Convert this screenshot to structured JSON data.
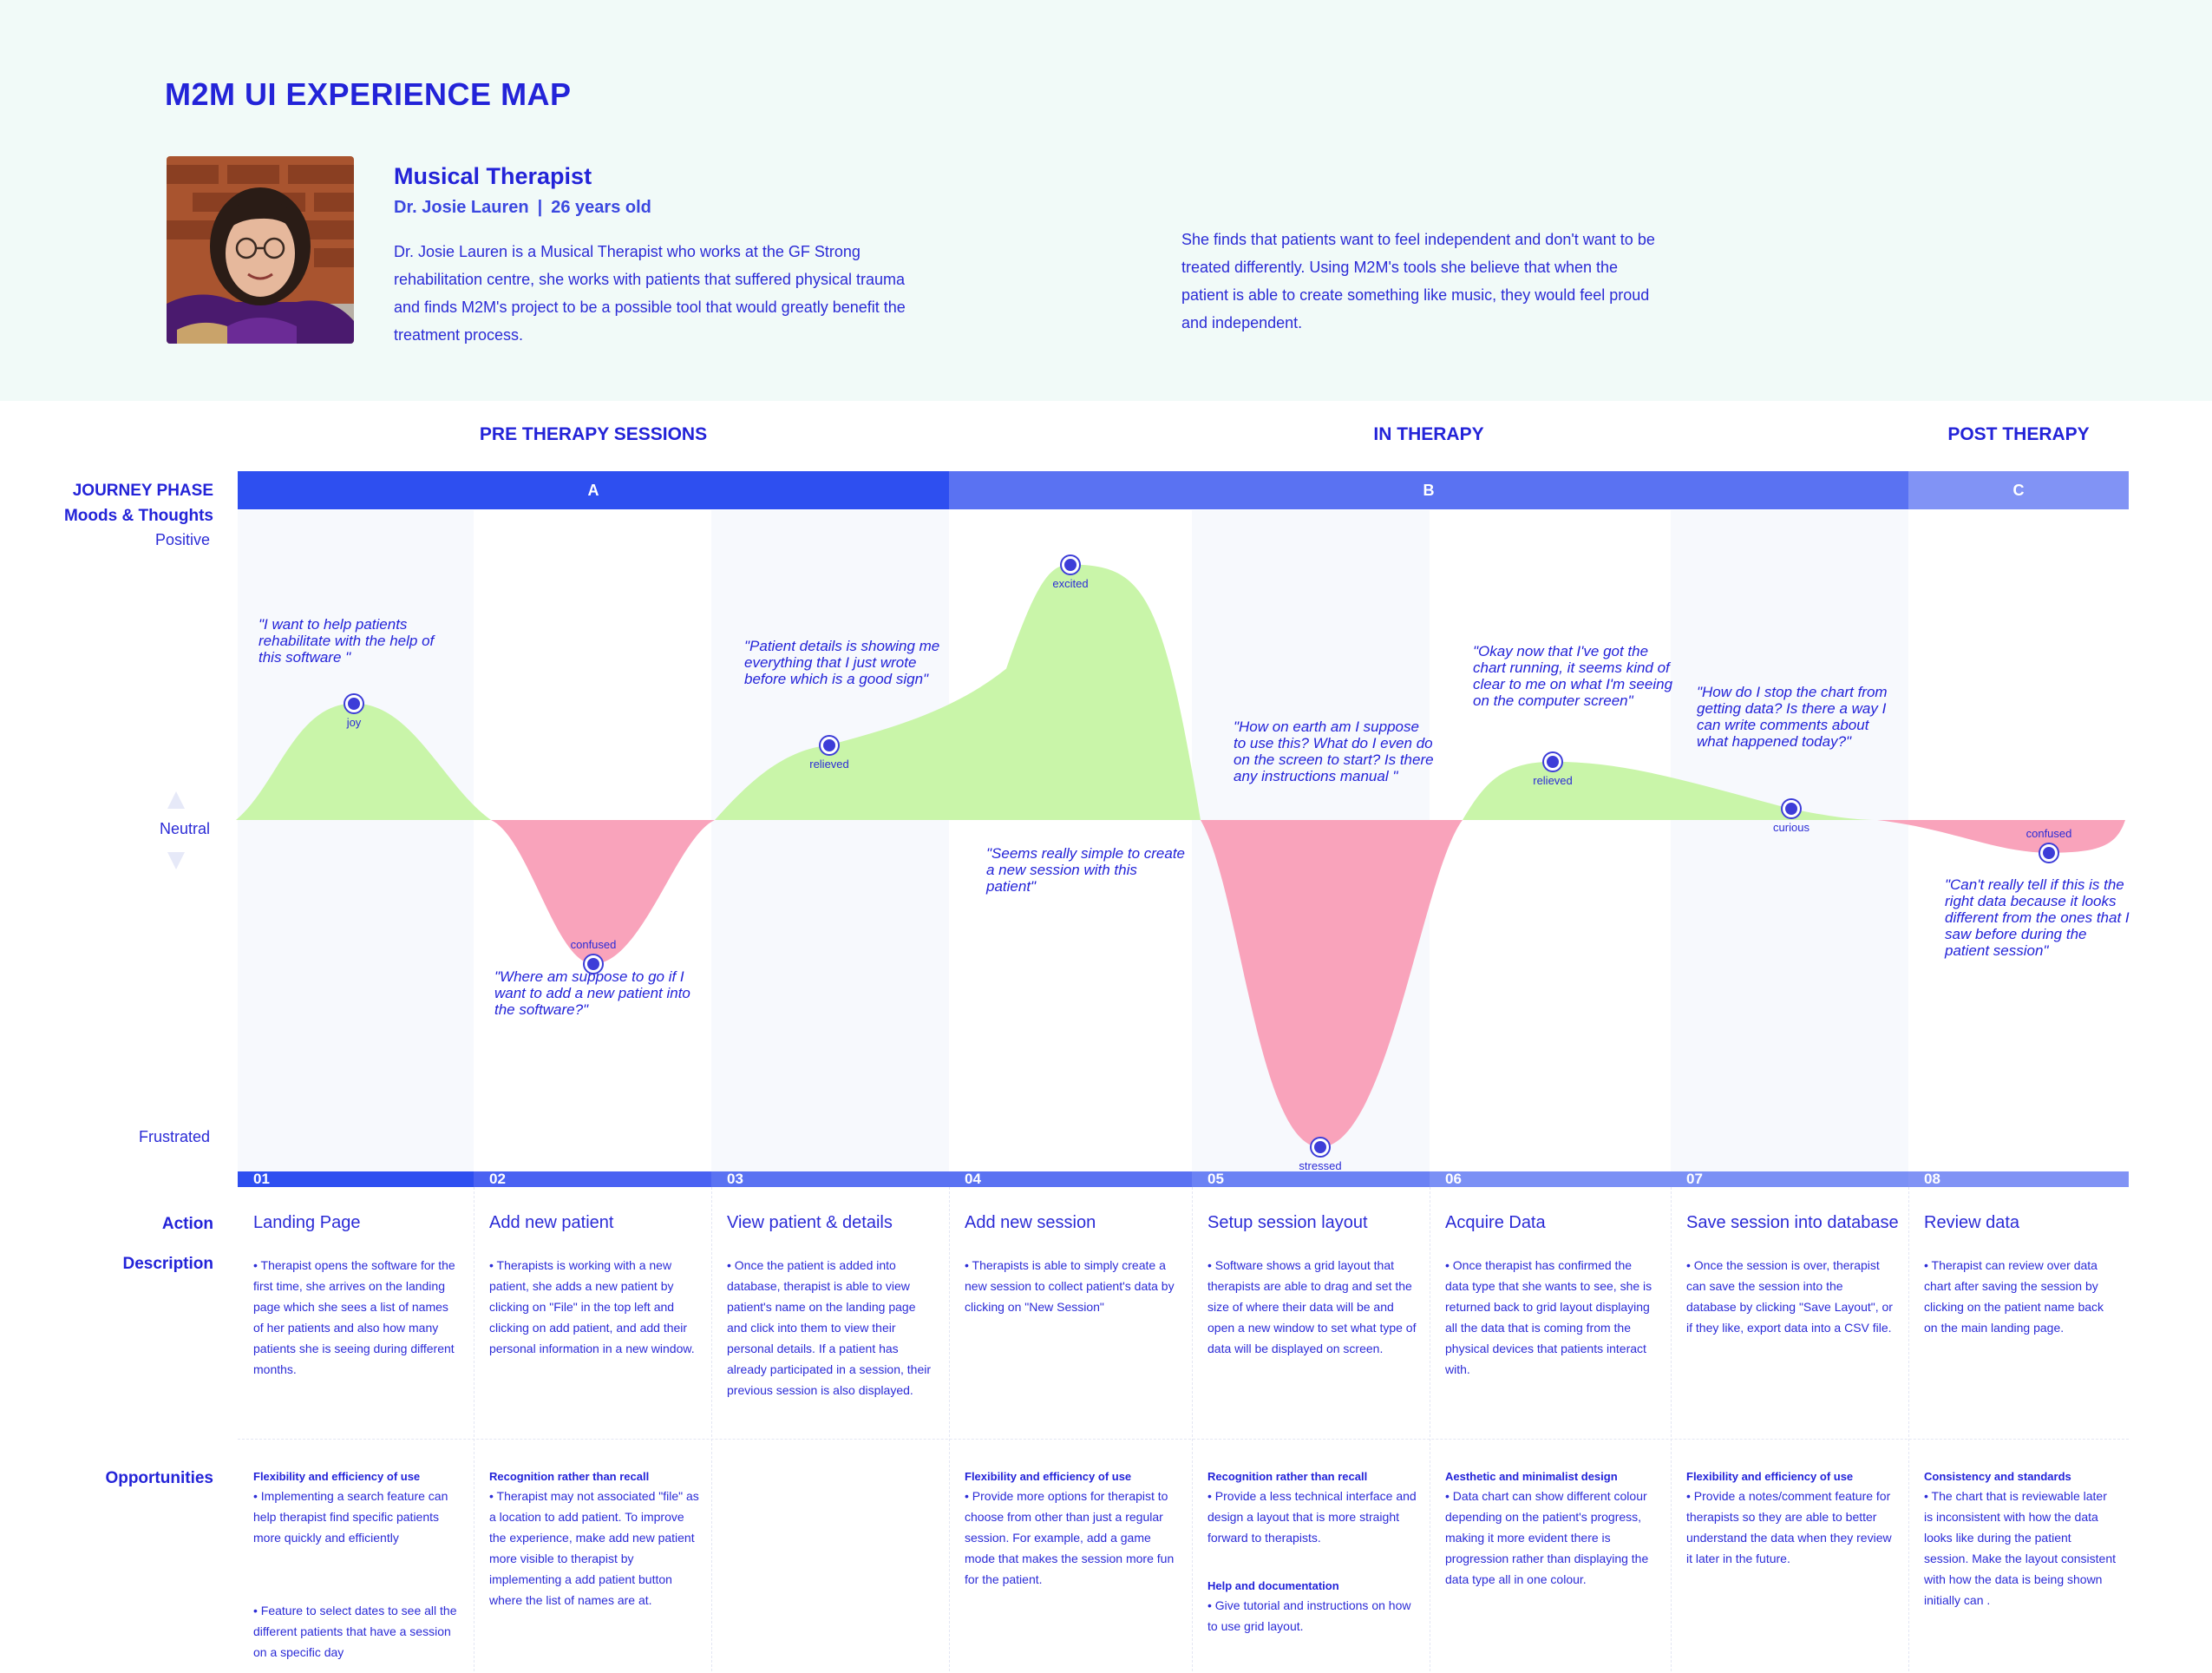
{
  "title": "M2M UI EXPERIENCE MAP",
  "persona": {
    "role": "Musical Therapist",
    "name": "Dr. Josie Lauren",
    "separator": "|",
    "age": "26 years old",
    "bio": "Dr. Josie Lauren is a Musical Therapist who works at the GF Strong rehabilitation centre, she works with patients that suffered physical trauma and finds M2M's project to be a possible tool that would greatly benefit the treatment process.",
    "insight": "She finds that patients want to feel independent and don't want to be treated differently. Using M2M's tools she believe that when the patient is able to create something like music, they would feel proud and independent."
  },
  "stages": [
    "PRE THERAPY SESSIONS",
    "IN THERAPY",
    "POST THERAPY"
  ],
  "phases": [
    "A",
    "B",
    "C"
  ],
  "labels": {
    "journey_phase": "JOURNEY PHASE",
    "moods": "Moods & Thoughts",
    "positive": "Positive",
    "neutral": "Neutral",
    "frustrated": "Frustrated",
    "action": "Action",
    "description": "Description",
    "opportunities": "Opportunities"
  },
  "colors": {
    "phase_a": "#2e4ff0",
    "phase_b": "#5a72f2",
    "phase_c": "#8193f5",
    "positive_fill": "#c9f5a9",
    "negative_fill": "#f9a3bb",
    "accent": "#2323d8"
  },
  "steps": [
    {
      "num": "01",
      "action": "Landing Page",
      "mood": "joy",
      "mood_level": 0.42,
      "quote": "\"I want to help patients rehabilitate with the help of this software \"",
      "description": "• Therapist opens the software for the first time, she arrives on the landing page which she sees a list of names of her patients and also how many patients she is seeing during different months.",
      "opportunities": [
        {
          "heading": "Flexibility and efficiency of use",
          "text": "• Implementing a search feature can help therapist find specific patients more quickly and efficiently"
        },
        {
          "heading": "",
          "text": "• Feature to select dates to see all the different patients that have a session on a specific day"
        }
      ]
    },
    {
      "num": "02",
      "action": "Add new patient",
      "mood": "confused",
      "mood_level": -0.44,
      "quote": "\"Where am suppose to go if I want to add a new patient into the software?\"",
      "description": "• Therapists is working with a new patient, she adds a new patient by clicking on \"File\" in the top left and clicking on add patient, and add their personal information in a new window.",
      "opportunities": [
        {
          "heading": "Recognition rather than recall",
          "text": "• Therapist may not associated \"file\" as a location to add patient. To improve the experience, make add new patient more visible to therapist by implementing a add patient button where the list of names are at."
        }
      ]
    },
    {
      "num": "03",
      "action": "View patient & details",
      "mood": "relieved",
      "mood_level": 0.27,
      "quote": "\"Patient details is showing me everything that I just wrote before which is a good sign\"",
      "description": "• Once the patient is added into database, therapist is able to view patient's name on the landing page and click into them to view their personal details. If a patient has already participated in a session, their previous session is also displayed.",
      "opportunities": []
    },
    {
      "num": "04",
      "action": "Add new session",
      "mood": "excited",
      "mood_level": 0.92,
      "quote": "\"Seems really simple to create a new session with this patient\"",
      "description": "• Therapists is able to simply create a new session to collect patient's data by clicking on \"New Session\"",
      "opportunities": [
        {
          "heading": "Flexibility and efficiency of use",
          "text": "• Provide more options for therapist to choose from other than just a regular session. For example, add a game mode that makes the session more fun for the patient."
        }
      ]
    },
    {
      "num": "05",
      "action": "Setup session layout",
      "mood": "stressed",
      "mood_level": -1.0,
      "quote": "\"How on earth am I suppose to use this? What do I even do on the screen to start? Is there any instructions manual \"",
      "description": "• Software shows a grid layout that therapists are able to drag and set the size of where their data will be and open a new window to set what type of data will be displayed on screen.",
      "opportunities": [
        {
          "heading": "Recognition rather than recall",
          "text": "• Provide a less technical interface and design a layout that is more straight forward to therapists."
        },
        {
          "heading": "Help and documentation",
          "text": "• Give tutorial and instructions on how to use grid layout."
        }
      ]
    },
    {
      "num": "06",
      "action": "Acquire Data",
      "mood": "relieved",
      "mood_level": 0.21,
      "quote": "\"Okay now that I've got the chart running, it seems kind of clear to me on what I'm seeing on the computer screen\"",
      "description": "• Once therapist has confirmed the data type that she wants to see, she is returned back to grid layout displaying all the data that is coming from the physical devices that patients interact with.",
      "opportunities": [
        {
          "heading": "Aesthetic and minimalist design",
          "text": "• Data chart can show different colour depending on the patient's progress, making it more evident there is progression rather than displaying the data type all in one colour."
        }
      ]
    },
    {
      "num": "07",
      "action": "Save session into database",
      "mood": "curious",
      "mood_level": 0.04,
      "quote": "\"How do I stop the chart from getting data? Is there a way I can write comments about what happened today?\"",
      "description": "• Once the session is over, therapist can save the session into the database by clicking \"Save Layout\", or if they like, export data into a CSV file.",
      "opportunities": [
        {
          "heading": "Flexibility and efficiency of use",
          "text": "• Provide a notes/comment feature for therapists so they are able to better understand the data when they review it later in the future."
        }
      ]
    },
    {
      "num": "08",
      "action": "Review data",
      "mood": "confused",
      "mood_level": -0.1,
      "quote": "\"Can't really tell if this is the right data because it looks different from the ones that I saw before during the patient session\"",
      "description": "• Therapist can review over data chart after saving the session by clicking on the patient name back on the main landing page.",
      "opportunities": [
        {
          "heading": "Consistency and standards",
          "text": "• The chart that is reviewable later is inconsistent with how the data looks like during the patient session. Make the layout consistent with how the data is being shown initially can ."
        }
      ]
    }
  ]
}
